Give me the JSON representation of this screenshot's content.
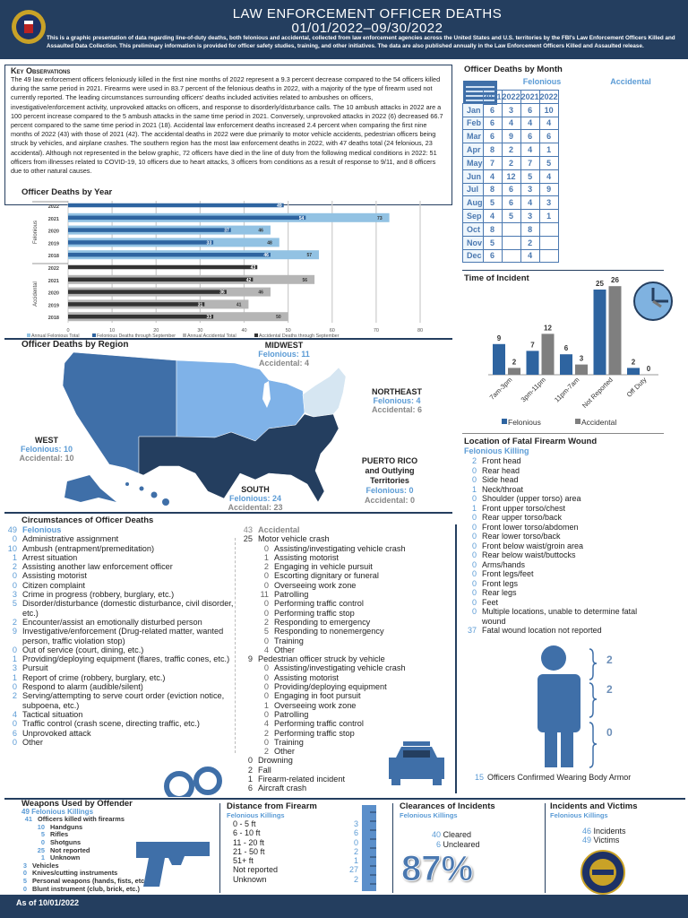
{
  "header": {
    "title": "LAW ENFORCEMENT OFFICER DEATHS",
    "date_range": "01/01/2022–09/30/2022",
    "intro": "This is a graphic presentation of data regarding line-of-duty deaths, both felonious and accidental, collected from law enforcement agencies across the United States and U.S. territories by the FBI's Law Enforcement Officers Killed and Assaulted Data Collection. This preliminary information is provided for officer safety studies, training, and other initiatives. The data are also published annually in the Law Enforcement Officers Killed and Assaulted release.",
    "seal_text": "FBI"
  },
  "key_observations": {
    "title": "Key Observations",
    "text": "The 49 law enforcement officers feloniously killed in the first nine months of 2022 represent a 9.3 percent decrease compared to the 54 officers killed during the same period in 2021. Firearms were used in 83.7 percent of the felonious deaths in 2022, with a majority of the type of firearm used not currently reported. The leading circumstances surrounding officers' deaths included activities related to ambushes on officers, investigative/enforcement activity, unprovoked attacks on officers, and response to disorderly/disturbance calls. The 10 ambush attacks in 2022 are a 100 percent increase compared to the 5 ambush attacks in the same time period in 2021. Conversely, unprovoked attacks in 2022 (6) decreased 66.7 percent compared to the same time period in 2021 (18). Accidental law enforcement deaths increased 2.4 percent when comparing the first nine months of 2022 (43) with those of 2021 (42). The accidental deaths in 2022 were due primarily to motor vehicle accidents, pedestrian officers being struck by vehicles, and airplane crashes. The southern region has the most law enforcement deaths in 2022, with 47 deaths total (24 felonious, 23 accidental). Although not represented in the below graphic, 72 officers have died in the line of duty from the following medical conditions in 2022: 51 officers from illnesses related to COVID-19, 10 officers due to heart attacks, 3 officers from conditions as a result of response to 9/11, and 8 officers due to other natural causes."
  },
  "chart_data": [
    {
      "type": "bar",
      "orientation": "horizontal",
      "title": "Officer Deaths by Year",
      "xlim": [
        0,
        80
      ],
      "xticks": [
        0,
        10,
        20,
        30,
        40,
        50,
        60,
        70,
        80
      ],
      "grid": true,
      "legend_position": "bottom",
      "groups": [
        {
          "label": "Felonious",
          "categories": [
            "2022",
            "2021",
            "2020",
            "2019",
            "2018"
          ],
          "series": [
            {
              "name": "Annual Felonious Total",
              "color": "#92c2e3",
              "values": [
                null,
                73,
                46,
                48,
                57
              ]
            },
            {
              "name": "Felonious Deaths through September",
              "color": "#2e64a0",
              "values": [
                49,
                54,
                37,
                33,
                46
              ]
            }
          ]
        },
        {
          "label": "Accidental",
          "categories": [
            "2022",
            "2021",
            "2020",
            "2019",
            "2018"
          ],
          "series": [
            {
              "name": "Annual Accidental Total",
              "color": "#b5b5b5",
              "values": [
                null,
                56,
                46,
                41,
                50
              ]
            },
            {
              "name": "Accidental Deaths through September",
              "color": "#333333",
              "values": [
                43,
                42,
                36,
                31,
                33
              ]
            }
          ]
        }
      ]
    },
    {
      "type": "bar",
      "title": "Time of Incident",
      "categories": [
        "7am-3pm",
        "3pm-11pm",
        "11pm-7am",
        "Not Reported",
        "Off Duty"
      ],
      "legend_position": "bottom",
      "series": [
        {
          "name": "Felonious",
          "color": "#2e64a0",
          "values": [
            9,
            7,
            6,
            25,
            2
          ]
        },
        {
          "name": "Accidental",
          "color": "#7f7f7f",
          "values": [
            2,
            12,
            3,
            26,
            0
          ]
        }
      ]
    }
  ],
  "region": {
    "title": "Officer Deaths by Region",
    "regions": [
      {
        "name": "MIDWEST",
        "felonious": "Felonious: 11",
        "accidental": "Accidental: 4"
      },
      {
        "name": "NORTHEAST",
        "felonious": "Felonious: 4",
        "accidental": "Accidental: 6"
      },
      {
        "name": "WEST",
        "felonious": "Felonious: 10",
        "accidental": "Accidental: 10"
      },
      {
        "name": "SOUTH",
        "felonious": "Felonious: 24",
        "accidental": "Accidental: 23"
      },
      {
        "name": "PUERTO RICO and Outlying Territories",
        "felonious": "Felonious: 0",
        "accidental": "Accidental: 0"
      }
    ],
    "colors": {
      "west": "#3f6fa8",
      "midwest": "#7fb2e8",
      "northeast": "#d6e6f2",
      "south": "#243e5f"
    }
  },
  "month": {
    "title": "Officer Deaths by Month",
    "group_headers": [
      "Felonious",
      "Accidental"
    ],
    "years": [
      "2021",
      "2022",
      "2021",
      "2022"
    ],
    "rows": [
      [
        "Jan",
        "6",
        "3",
        "6",
        "10"
      ],
      [
        "Feb",
        "6",
        "4",
        "4",
        "4"
      ],
      [
        "Mar",
        "6",
        "9",
        "6",
        "6"
      ],
      [
        "Apr",
        "8",
        "2",
        "4",
        "1"
      ],
      [
        "May",
        "7",
        "2",
        "7",
        "5"
      ],
      [
        "Jun",
        "4",
        "12",
        "5",
        "4"
      ],
      [
        "Jul",
        "8",
        "6",
        "3",
        "9"
      ],
      [
        "Aug",
        "5",
        "6",
        "4",
        "3"
      ],
      [
        "Sep",
        "4",
        "5",
        "3",
        "1"
      ],
      [
        "Oct",
        "8",
        "",
        "8",
        ""
      ],
      [
        "Nov",
        "5",
        "",
        "2",
        ""
      ],
      [
        "Dec",
        "6",
        "",
        "4",
        ""
      ]
    ]
  },
  "wound": {
    "title": "Location of Fatal Firearm Wound",
    "subtitle": "Felonious Killing",
    "items": [
      [
        "2",
        "Front head"
      ],
      [
        "0",
        "Rear head"
      ],
      [
        "0",
        "Side head"
      ],
      [
        "1",
        "Neck/throat"
      ],
      [
        "0",
        "Shoulder (upper torso) area"
      ],
      [
        "1",
        "Front upper torso/chest"
      ],
      [
        "0",
        "Rear upper torso/back"
      ],
      [
        "0",
        "Front lower torso/abdomen"
      ],
      [
        "0",
        "Rear lower torso/back"
      ],
      [
        "0",
        "Front below waist/groin area"
      ],
      [
        "0",
        "Rear below waist/buttocks"
      ],
      [
        "0",
        "Arms/hands"
      ],
      [
        "0",
        "Front legs/feet"
      ],
      [
        "0",
        "Front legs"
      ],
      [
        "0",
        "Rear legs"
      ],
      [
        "0",
        "Feet"
      ],
      [
        "0",
        "Multiple locations, unable to determine fatal wound"
      ],
      [
        "37",
        "Fatal wound location not reported"
      ]
    ]
  },
  "armor": {
    "values": [
      "2",
      "2",
      "0"
    ],
    "count": "15",
    "label": "Officers Confirmed Wearing Body Armor"
  },
  "circumstances": {
    "title": "Circumstances of Officer Deaths",
    "felonious": {
      "count": "49",
      "label": "Felonious",
      "items": [
        [
          "0",
          "Administrative assignment"
        ],
        [
          "10",
          "Ambush (entrapment/premeditation)"
        ],
        [
          "1",
          "Arrest situation"
        ],
        [
          "2",
          "Assisting another law enforcement officer"
        ],
        [
          "0",
          "Assisting motorist"
        ],
        [
          "0",
          "Citizen complaint"
        ],
        [
          "3",
          "Crime in progress (robbery, burglary, etc.)"
        ],
        [
          "5",
          "Disorder/disturbance (domestic disturbance, civil disorder, etc.)"
        ],
        [
          "2",
          "Encounter/assist an emotionally disturbed person"
        ],
        [
          "9",
          "Investigative/enforcement (Drug-related matter, wanted person, traffic violation stop)"
        ],
        [
          "0",
          "Out of service (court, dining, etc.)"
        ],
        [
          "1",
          "Providing/deploying equipment (flares, traffic cones, etc.)"
        ],
        [
          "3",
          "Pursuit"
        ],
        [
          "1",
          "Report of crime  (robbery, burglary, etc.)"
        ],
        [
          "0",
          "Respond to alarm (audible/silent)"
        ],
        [
          "2",
          "Serving/attempting to serve court order (eviction notice, subpoena, etc.)"
        ],
        [
          "4",
          "Tactical situation"
        ],
        [
          "0",
          "Traffic control (crash scene, directing traffic, etc.)"
        ],
        [
          "6",
          "Unprovoked attack"
        ],
        [
          "0",
          "Other"
        ]
      ]
    },
    "accidental": {
      "count": "43",
      "label": "Accidental",
      "items": [
        {
          "n": "25",
          "t": "Motor vehicle crash",
          "sub": [
            [
              "0",
              "Assisting/investigating vehicle crash"
            ],
            [
              "1",
              "Assisting motorist"
            ],
            [
              "2",
              "Engaging in vehicle pursuit"
            ],
            [
              "0",
              "Escorting dignitary or funeral"
            ],
            [
              "0",
              "Overseeing work zone"
            ],
            [
              "11",
              "Patrolling"
            ],
            [
              "0",
              "Performing traffic control"
            ],
            [
              "0",
              "Performing traffic stop"
            ],
            [
              "2",
              "Responding to emergency"
            ],
            [
              "5",
              "Responding to nonemergency"
            ],
            [
              "0",
              "Training"
            ],
            [
              "4",
              "Other"
            ]
          ]
        },
        {
          "n": "9",
          "t": "Pedestrian officer struck by vehicle",
          "sub": [
            [
              "0",
              "Assisting/investigating vehicle crash"
            ],
            [
              "0",
              "Assisting motorist"
            ],
            [
              "0",
              "Providing/deploying equipment"
            ],
            [
              "0",
              "Engaging in foot pursuit"
            ],
            [
              "1",
              "Overseeing work zone"
            ],
            [
              "0",
              "Patrolling"
            ],
            [
              "4",
              "Performing traffic control"
            ],
            [
              "2",
              "Performing traffic stop"
            ],
            [
              "0",
              "Training"
            ],
            [
              "2",
              "Other"
            ]
          ]
        },
        {
          "n": "0",
          "t": "Drowning",
          "sub": []
        },
        {
          "n": "2",
          "t": "Fall",
          "sub": []
        },
        {
          "n": "1",
          "t": "Firearm-related incident",
          "sub": []
        },
        {
          "n": "6",
          "t": "Aircraft crash",
          "sub": []
        }
      ]
    }
  },
  "weapons": {
    "title": "Weapons Used by Offender",
    "subtitle": "49 Felonious Killings",
    "firearms": [
      "41",
      "Officers killed with firearms"
    ],
    "firearm_types": [
      [
        "10",
        "Handguns"
      ],
      [
        "5",
        "Rifles"
      ],
      [
        "0",
        "Shotguns"
      ],
      [
        "25",
        "Not reported"
      ],
      [
        "1",
        "Unknown"
      ]
    ],
    "other": [
      [
        "3",
        "Vehicles"
      ],
      [
        "0",
        "Knives/cutting instruments"
      ],
      [
        "5",
        "Personal weapons (hands, fists, etc.)"
      ],
      [
        "0",
        "Blunt instrument (club, brick, etc.)"
      ]
    ]
  },
  "distance": {
    "title": "Distance from Firearm",
    "subtitle": "Felonious Killings",
    "items": [
      [
        "0 - 5 ft",
        "3"
      ],
      [
        "6 - 10 ft",
        "6"
      ],
      [
        "11 - 20 ft",
        "0"
      ],
      [
        "21 - 50 ft",
        "2"
      ],
      [
        "51+ ft",
        "1"
      ],
      [
        "Not reported",
        "27"
      ],
      [
        "Unknown",
        "2"
      ]
    ]
  },
  "clearances": {
    "title": "Clearances of Incidents",
    "subtitle": "Felonious Killings",
    "cleared": "40",
    "cleared_label": "Cleared",
    "uncleared": "6",
    "uncleared_label": "Uncleared",
    "percent": "87%"
  },
  "incidents": {
    "title": "Incidents and Victims",
    "subtitle": "Felonious Killings",
    "incidents": "46",
    "incidents_label": "Incidents",
    "victims": "49",
    "victims_label": "Victims",
    "seal_text": "LEOKA"
  },
  "footer": {
    "as_of": "As of 10/01/2022"
  }
}
